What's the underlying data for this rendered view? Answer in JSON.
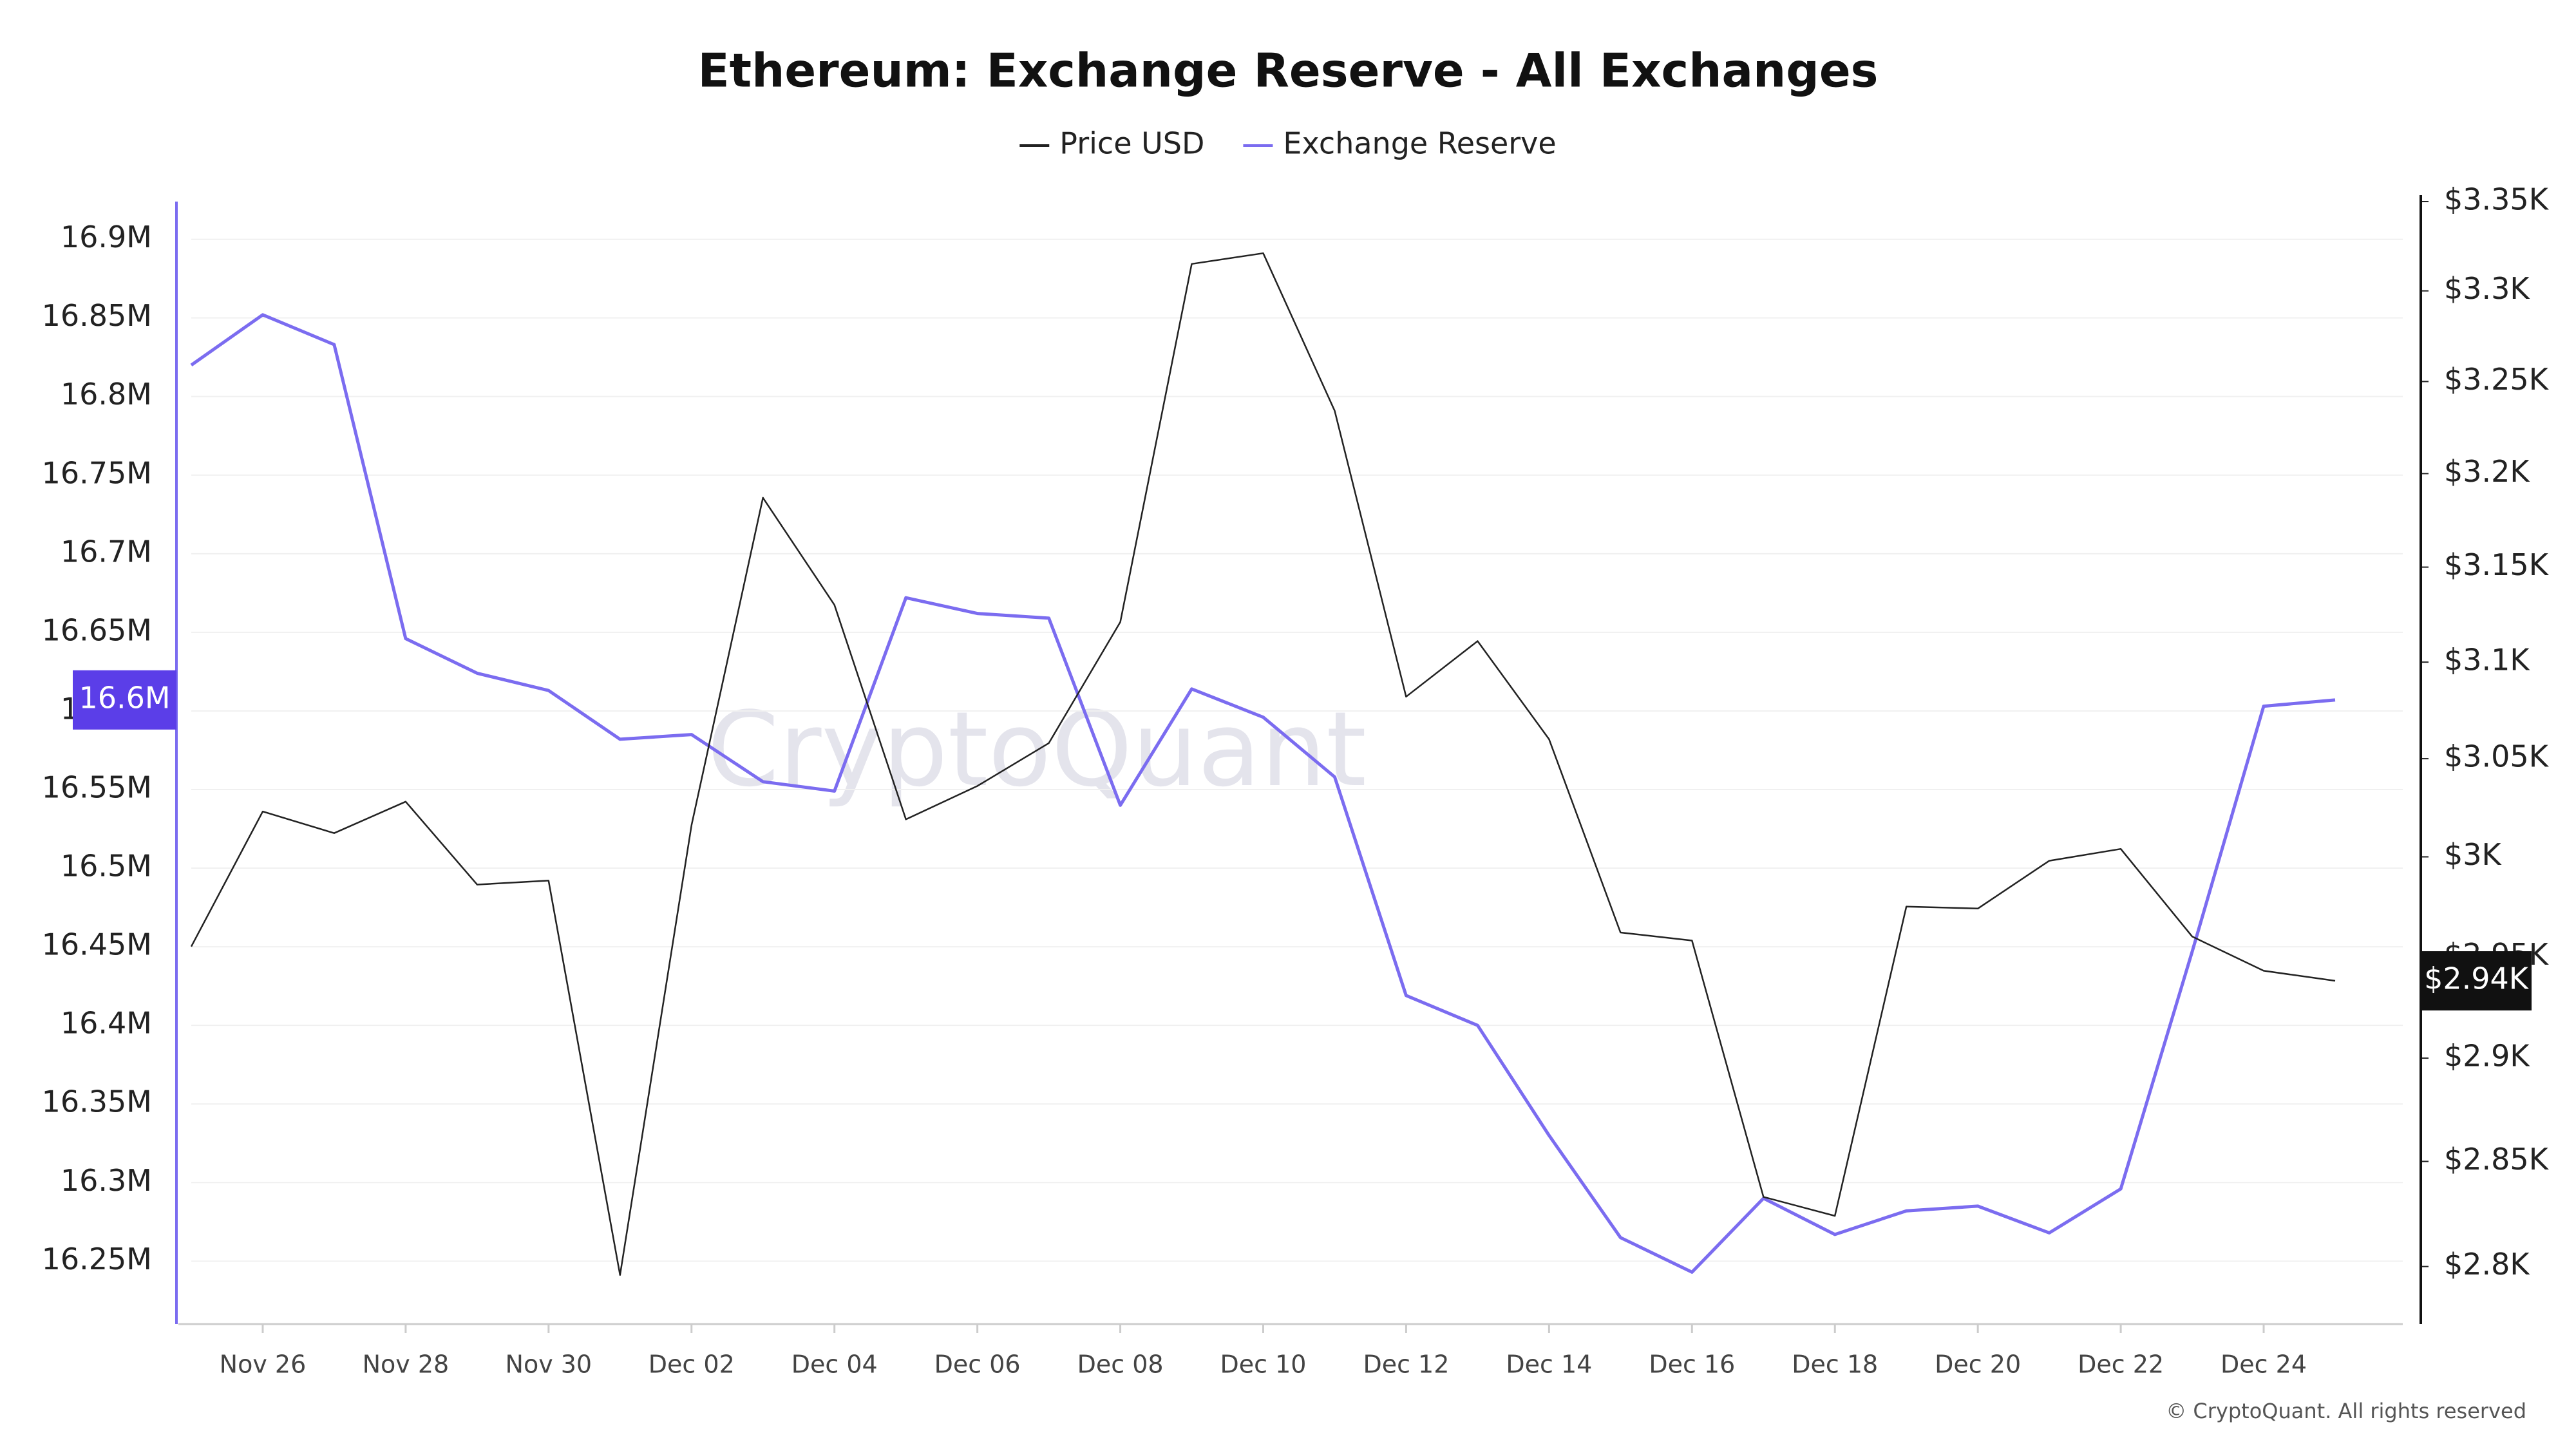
{
  "chart_data": {
    "type": "line",
    "title": "Ethereum: Exchange Reserve - All Exchanges",
    "watermark": "CryptoQuant",
    "copyright": "© CryptoQuant. All rights reserved",
    "categories": [
      null,
      "Nov 26",
      null,
      "Nov 28",
      null,
      "Nov 30",
      null,
      "Dec 02",
      null,
      "Dec 04",
      null,
      "Dec 06",
      null,
      "Dec 08",
      null,
      "Dec 10",
      null,
      "Dec 12",
      null,
      "Dec 14",
      null,
      "Dec 16",
      null,
      "Dec 18",
      null,
      "Dec 20",
      null,
      "Dec 22",
      null,
      "Dec 24",
      null
    ],
    "series": [
      {
        "name": "Price USD",
        "color": "#222222",
        "axis": "y2",
        "values": [
          2955,
          3023,
          3012,
          3028,
          2986,
          2988,
          2796,
          3016,
          3187,
          3130,
          3019,
          3036,
          3058,
          3121,
          3315,
          3321,
          3234,
          3082,
          3111,
          3060,
          2962,
          2958,
          2833,
          2824,
          2975,
          2974,
          2998,
          3004,
          2960,
          2943,
          2938
        ],
        "value_labels": [
          null,
          null,
          null,
          null,
          null,
          null,
          null,
          null,
          null,
          null,
          null,
          null,
          null,
          null,
          null,
          null,
          null,
          null,
          null,
          null,
          null,
          null,
          null,
          null,
          null,
          null,
          null,
          null,
          null,
          null,
          "$2.94K"
        ],
        "label_color": "#111111"
      },
      {
        "name": "Exchange Reserve",
        "color": "#7b6cf0",
        "axis": "y",
        "values": [
          16820000,
          16852000,
          16833000,
          16646000,
          16624000,
          16613000,
          16582000,
          16585000,
          16555000,
          16549000,
          16672000,
          16662000,
          16659000,
          16540000,
          16614000,
          16596000,
          16558000,
          16419000,
          16400000,
          16330000,
          16265000,
          16243000,
          16290000,
          16267000,
          16282000,
          16285000,
          16268000,
          16296000,
          16447000,
          16603000,
          16607000
        ],
        "value_labels": [
          null,
          null,
          null,
          null,
          null,
          null,
          null,
          null,
          null,
          null,
          null,
          null,
          null,
          null,
          null,
          null,
          null,
          null,
          null,
          null,
          null,
          null,
          null,
          null,
          null,
          null,
          null,
          null,
          null,
          null,
          "16.6M"
        ],
        "label_color": "#5b3ee8"
      }
    ],
    "ylim": [
      16210000,
      16924000
    ],
    "yticks": [
      {
        "value": 16250000,
        "label": "16.25M"
      },
      {
        "value": 16300000,
        "label": "16.3M"
      },
      {
        "value": 16350000,
        "label": "16.35M"
      },
      {
        "value": 16400000,
        "label": "16.4M"
      },
      {
        "value": 16450000,
        "label": "16.45M"
      },
      {
        "value": 16500000,
        "label": "16.5M"
      },
      {
        "value": 16550000,
        "label": "16.55M"
      },
      {
        "value": 16600000,
        "label": "16.6M"
      },
      {
        "value": 16650000,
        "label": "16.65M"
      },
      {
        "value": 16700000,
        "label": "16.7M"
      },
      {
        "value": 16750000,
        "label": "16.75M"
      },
      {
        "value": 16800000,
        "label": "16.8M"
      },
      {
        "value": 16850000,
        "label": "16.85M"
      },
      {
        "value": 16900000,
        "label": "16.9M"
      }
    ],
    "y2lim": [
      2773,
      3350
    ],
    "y2_log": true,
    "y2ticks": [
      {
        "value": 2800,
        "label": "$2.8K"
      },
      {
        "value": 2850,
        "label": "$2.85K"
      },
      {
        "value": 2900,
        "label": "$2.9K"
      },
      {
        "value": 2950,
        "label": "$2.95K"
      },
      {
        "value": 3000,
        "label": "$3K"
      },
      {
        "value": 3050,
        "label": "$3.05K"
      },
      {
        "value": 3100,
        "label": "$3.1K"
      },
      {
        "value": 3150,
        "label": "$3.15K"
      },
      {
        "value": 3200,
        "label": "$3.2K"
      },
      {
        "value": 3250,
        "label": "$3.25K"
      },
      {
        "value": 3300,
        "label": "$3.3K"
      },
      {
        "value": 3350,
        "label": "$3.35K"
      }
    ],
    "grid": true,
    "legend": "top"
  }
}
